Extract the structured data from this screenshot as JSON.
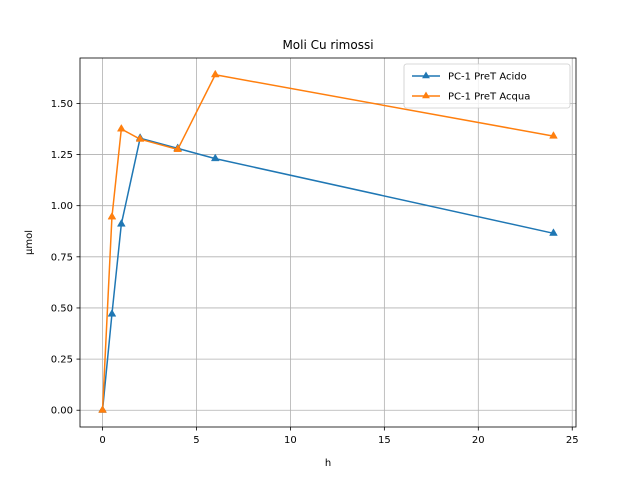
{
  "chart_data": {
    "type": "line",
    "title": "Moli Cu rimossi",
    "xlabel": "h",
    "ylabel": "µmol",
    "xlim": [
      -1.2,
      25.2
    ],
    "ylim": [
      -0.082,
      1.722
    ],
    "xticks": [
      0,
      5,
      10,
      15,
      20,
      25
    ],
    "xtick_labels": [
      "0",
      "5",
      "10",
      "15",
      "20",
      "25"
    ],
    "yticks": [
      0.0,
      0.25,
      0.5,
      0.75,
      1.0,
      1.25,
      1.5
    ],
    "ytick_labels": [
      "0.00",
      "0.25",
      "0.50",
      "0.75",
      "1.00",
      "1.25",
      "1.50"
    ],
    "grid": true,
    "legend_position": "top-right",
    "marker": "triangle-up",
    "series": [
      {
        "name": "PC-1 PreT Acido",
        "color": "#1f77b4",
        "x": [
          0,
          0.5,
          1,
          2,
          4,
          6,
          24
        ],
        "y": [
          0.0,
          0.47,
          0.91,
          1.33,
          1.28,
          1.23,
          0.865
        ]
      },
      {
        "name": "PC-1 PreT Acqua",
        "color": "#ff7f0e",
        "x": [
          0,
          0.5,
          1,
          2,
          4,
          6,
          24
        ],
        "y": [
          0.0,
          0.945,
          1.375,
          1.325,
          1.275,
          1.64,
          1.34
        ]
      }
    ]
  }
}
